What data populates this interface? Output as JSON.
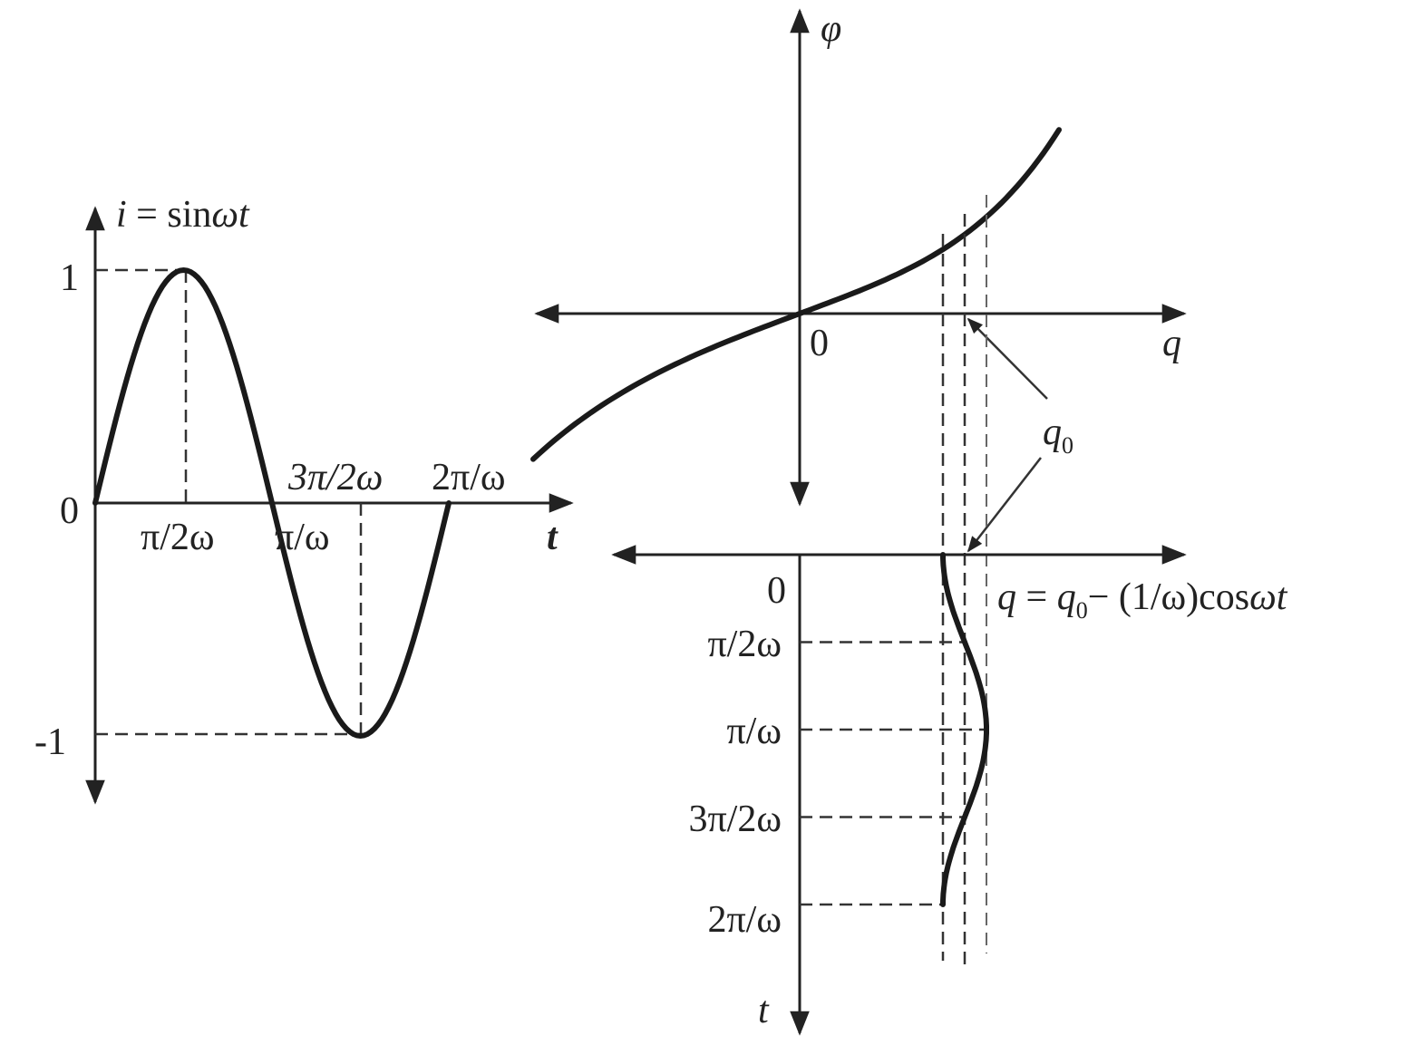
{
  "left_plot": {
    "y_label": "i = sinωt",
    "x_label": "t",
    "y_ticks": [
      "1",
      "0",
      "-1"
    ],
    "x_ticks_below": [
      "π/2ω",
      "π/ω"
    ],
    "x_ticks_above": [
      "3π/2ω",
      "2π/ω"
    ]
  },
  "phi_q_plot": {
    "y_label": "φ",
    "x_label": "q",
    "origin_label": "0",
    "marker_label": "q",
    "marker_subscript": "0"
  },
  "q_t_plot": {
    "origin_label": "0",
    "formula_q": "q",
    "formula_eq": " = ",
    "formula_q0": "q",
    "formula_sub": "0",
    "formula_rest": "− (1/ω)cos",
    "formula_wt": "ωt",
    "t_ticks": [
      "π/2ω",
      "π/ω",
      "3π/2ω",
      "2π/ω"
    ],
    "t_label": "t"
  }
}
